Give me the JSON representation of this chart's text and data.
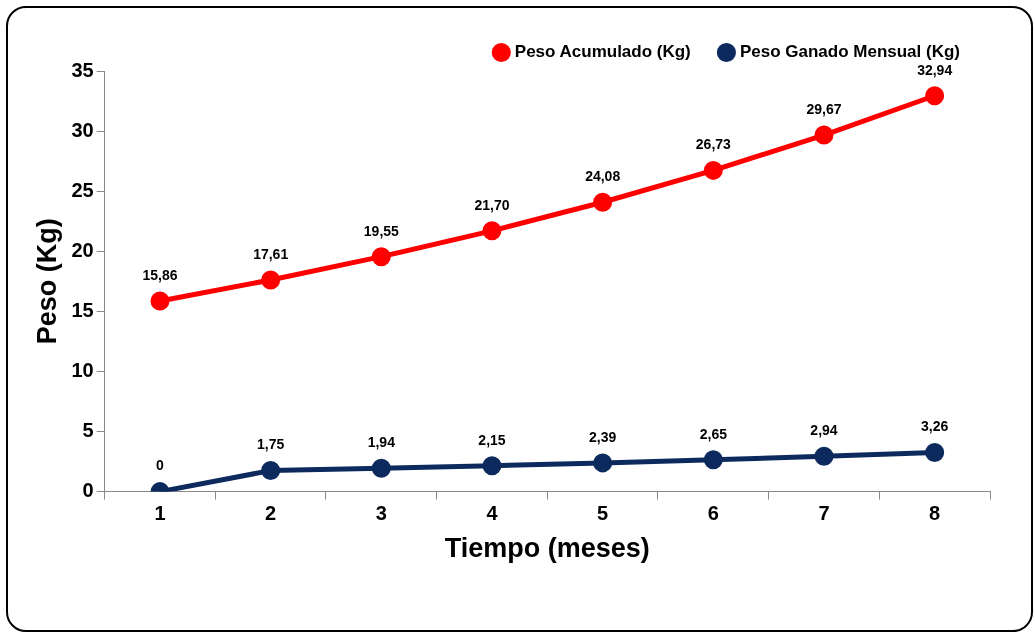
{
  "chart_data": {
    "type": "line",
    "xlabel": "Tiempo (meses)",
    "ylabel": "Peso (Kg)",
    "categories": [
      "1",
      "2",
      "3",
      "4",
      "5",
      "6",
      "7",
      "8"
    ],
    "series": [
      {
        "name": "Peso Acumulado (Kg)",
        "color": "#ff0000",
        "values": [
          15.86,
          17.61,
          19.55,
          21.7,
          24.08,
          26.73,
          29.67,
          32.94
        ],
        "value_labels": [
          "15,86",
          "17,61",
          "19,55",
          "21,70",
          "24,08",
          "26,73",
          "29,67",
          "32,94"
        ]
      },
      {
        "name": "Peso Ganado Mensual (Kg)",
        "color": "#0d2a5e",
        "values": [
          0,
          1.75,
          1.94,
          2.15,
          2.39,
          2.65,
          2.94,
          3.26
        ],
        "value_labels": [
          "0",
          "1,75",
          "1,94",
          "2,15",
          "2,39",
          "2,65",
          "2,94",
          "3,26"
        ]
      }
    ],
    "ylim": [
      0,
      35
    ],
    "yticks": [
      0,
      5,
      10,
      15,
      20,
      25,
      30,
      35
    ],
    "grid": false,
    "legend": "top",
    "marker": "circle",
    "line_style": "solid"
  }
}
